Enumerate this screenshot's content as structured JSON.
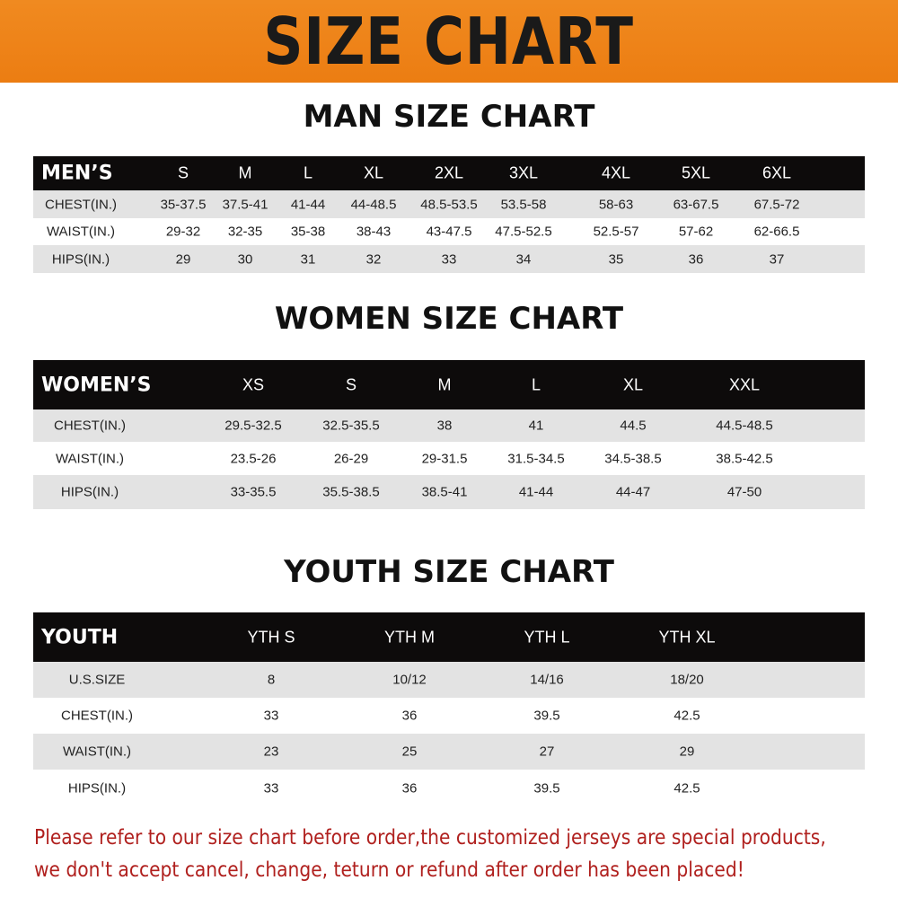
{
  "banner": {
    "title": "SIZE CHART"
  },
  "men": {
    "title": "MAN SIZE CHART",
    "header": "MEN’S",
    "sizes": [
      "S",
      "M",
      "L",
      "XL",
      "2XL",
      "3XL",
      "4XL",
      "5XL",
      "6XL"
    ],
    "rows": [
      {
        "label": "CHEST(IN.)",
        "values": [
          "35-37.5",
          "37.5-41",
          "41-44",
          "44-48.5",
          "48.5-53.5",
          "53.5-58",
          "58-63",
          "63-67.5",
          "67.5-72"
        ]
      },
      {
        "label": "WAIST(IN.)",
        "values": [
          "29-32",
          "32-35",
          "35-38",
          "38-43",
          "43-47.5",
          "47.5-52.5",
          "52.5-57",
          "57-62",
          "62-66.5"
        ]
      },
      {
        "label": "HIPS(IN.)",
        "values": [
          "29",
          "30",
          "31",
          "32",
          "33",
          "34",
          "35",
          "36",
          "37"
        ]
      }
    ]
  },
  "women": {
    "title": "WOMEN SIZE CHART",
    "header": "WOMEN’S",
    "sizes": [
      "XS",
      "S",
      "M",
      "L",
      "XL",
      "XXL"
    ],
    "rows": [
      {
        "label": "CHEST(IN.)",
        "values": [
          "29.5-32.5",
          "32.5-35.5",
          "38",
          "41",
          "44.5",
          "44.5-48.5"
        ]
      },
      {
        "label": "WAIST(IN.)",
        "values": [
          "23.5-26",
          "26-29",
          "29-31.5",
          "31.5-34.5",
          "34.5-38.5",
          "38.5-42.5"
        ]
      },
      {
        "label": "HIPS(IN.)",
        "values": [
          "33-35.5",
          "35.5-38.5",
          "38.5-41",
          "41-44",
          "44-47",
          "47-50"
        ]
      }
    ]
  },
  "youth": {
    "title": "YOUTH SIZE CHART",
    "header": "YOUTH",
    "sizes": [
      "YTH S",
      "YTH M",
      "YTH L",
      "YTH XL"
    ],
    "rows": [
      {
        "label": "U.S.SIZE",
        "values": [
          "8",
          "10/12",
          "14/16",
          "18/20"
        ]
      },
      {
        "label": "CHEST(IN.)",
        "values": [
          "33",
          "36",
          "39.5",
          "42.5"
        ]
      },
      {
        "label": "WAIST(IN.)",
        "values": [
          "23",
          "25",
          "27",
          "29"
        ]
      },
      {
        "label": "HIPS(IN.)",
        "values": [
          "33",
          "36",
          "39.5",
          "42.5"
        ]
      }
    ]
  },
  "notice": {
    "line1": "Please refer to our size chart before order,the customized jerseys are special products,",
    "line2": "we don't accept cancel, change, teturn or refund after order has been placed!"
  }
}
